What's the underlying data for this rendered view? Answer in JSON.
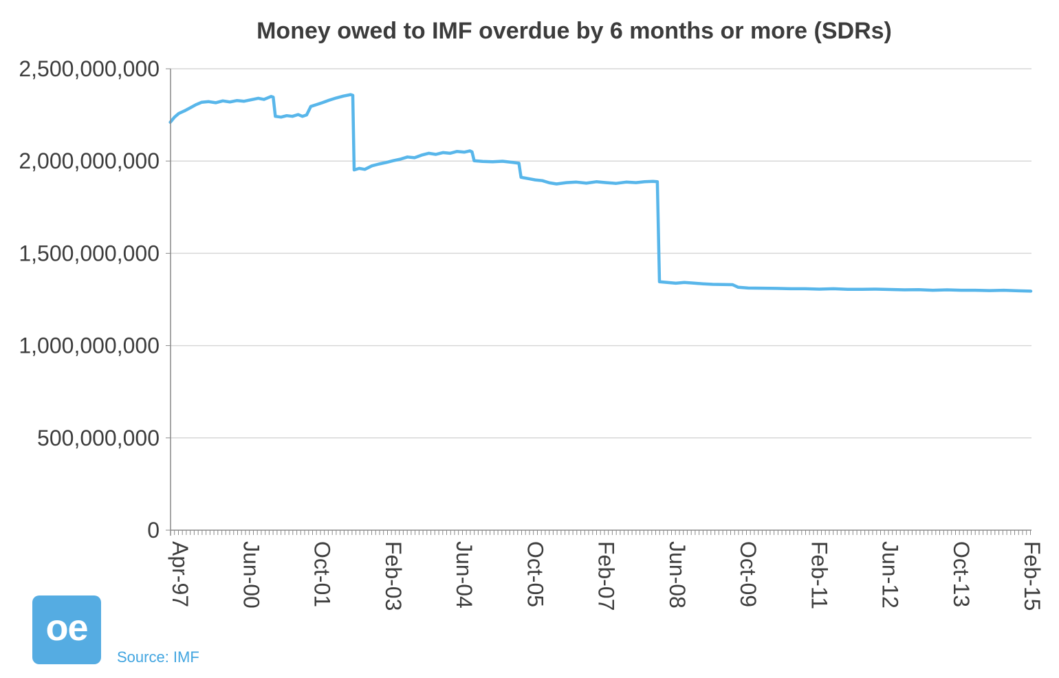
{
  "chart": {
    "title": "Money owed to IMF overdue by 6 months or more (SDRs)"
  },
  "footer": {
    "logo_text": "oe",
    "source": "Source: IMF"
  },
  "colors": {
    "line": "#58b6ea",
    "logo_bg": "#55ace2",
    "source_text": "#42a5e0",
    "gridline": "#d7d7d7",
    "axis": "#898989",
    "tick_text": "#3d3d3d"
  },
  "chart_data": {
    "type": "line",
    "title": "Money owed to IMF overdue by 6 months or more (SDRs)",
    "legend": "none",
    "grid": "horizontal",
    "x_note": "x values are axis positions where 0 = Apr-97 tick and 12 = Feb-15 tick; ticks are evenly spaced",
    "x_tick_labels": [
      "Apr-97",
      "Jun-00",
      "Oct-01",
      "Feb-03",
      "Jun-04",
      "Oct-05",
      "Feb-07",
      "Jun-08",
      "Oct-09",
      "Feb-11",
      "Jun-12",
      "Oct-13",
      "Feb-15"
    ],
    "y_axis": {
      "min": 0,
      "max": 2500000000,
      "tick_interval": 500000000,
      "tick_labels": [
        "0",
        "500,000,000",
        "1,000,000,000",
        "1,500,000,000",
        "2,000,000,000",
        "2,500,000,000"
      ]
    },
    "points": [
      [
        -0.12,
        2210000000
      ],
      [
        -0.06,
        2238000000
      ],
      [
        0.0,
        2258000000
      ],
      [
        0.08,
        2272000000
      ],
      [
        0.16,
        2288000000
      ],
      [
        0.24,
        2305000000
      ],
      [
        0.32,
        2318000000
      ],
      [
        0.42,
        2322000000
      ],
      [
        0.52,
        2316000000
      ],
      [
        0.62,
        2326000000
      ],
      [
        0.72,
        2320000000
      ],
      [
        0.82,
        2328000000
      ],
      [
        0.92,
        2324000000
      ],
      [
        1.02,
        2332000000
      ],
      [
        1.12,
        2340000000
      ],
      [
        1.2,
        2334000000
      ],
      [
        1.3,
        2350000000
      ],
      [
        1.33,
        2346000000
      ],
      [
        1.36,
        2242000000
      ],
      [
        1.44,
        2238000000
      ],
      [
        1.52,
        2246000000
      ],
      [
        1.6,
        2242000000
      ],
      [
        1.68,
        2252000000
      ],
      [
        1.74,
        2242000000
      ],
      [
        1.8,
        2250000000
      ],
      [
        1.86,
        2296000000
      ],
      [
        1.94,
        2306000000
      ],
      [
        2.02,
        2316000000
      ],
      [
        2.12,
        2330000000
      ],
      [
        2.22,
        2342000000
      ],
      [
        2.32,
        2352000000
      ],
      [
        2.42,
        2360000000
      ],
      [
        2.45,
        2356000000
      ],
      [
        2.47,
        1952000000
      ],
      [
        2.54,
        1960000000
      ],
      [
        2.62,
        1955000000
      ],
      [
        2.72,
        1974000000
      ],
      [
        2.82,
        1984000000
      ],
      [
        2.92,
        1992000000
      ],
      [
        3.02,
        2002000000
      ],
      [
        3.12,
        2010000000
      ],
      [
        3.22,
        2022000000
      ],
      [
        3.32,
        2018000000
      ],
      [
        3.42,
        2032000000
      ],
      [
        3.52,
        2042000000
      ],
      [
        3.62,
        2036000000
      ],
      [
        3.72,
        2046000000
      ],
      [
        3.82,
        2042000000
      ],
      [
        3.92,
        2052000000
      ],
      [
        4.02,
        2048000000
      ],
      [
        4.1,
        2055000000
      ],
      [
        4.13,
        2050000000
      ],
      [
        4.16,
        2002000000
      ],
      [
        4.28,
        1998000000
      ],
      [
        4.42,
        1996000000
      ],
      [
        4.56,
        1999000000
      ],
      [
        4.7,
        1993000000
      ],
      [
        4.79,
        1988000000
      ],
      [
        4.82,
        1912000000
      ],
      [
        4.92,
        1905000000
      ],
      [
        5.02,
        1898000000
      ],
      [
        5.12,
        1894000000
      ],
      [
        5.22,
        1882000000
      ],
      [
        5.32,
        1876000000
      ],
      [
        5.46,
        1883000000
      ],
      [
        5.6,
        1886000000
      ],
      [
        5.74,
        1880000000
      ],
      [
        5.88,
        1888000000
      ],
      [
        6.02,
        1883000000
      ],
      [
        6.16,
        1879000000
      ],
      [
        6.3,
        1886000000
      ],
      [
        6.44,
        1883000000
      ],
      [
        6.56,
        1888000000
      ],
      [
        6.68,
        1890000000
      ],
      [
        6.74,
        1888000000
      ],
      [
        6.77,
        1346000000
      ],
      [
        6.88,
        1342000000
      ],
      [
        7.0,
        1338000000
      ],
      [
        7.12,
        1342000000
      ],
      [
        7.24,
        1339000000
      ],
      [
        7.38,
        1335000000
      ],
      [
        7.52,
        1332000000
      ],
      [
        7.66,
        1331000000
      ],
      [
        7.8,
        1330000000
      ],
      [
        7.88,
        1316000000
      ],
      [
        8.02,
        1312000000
      ],
      [
        8.22,
        1311000000
      ],
      [
        8.42,
        1310000000
      ],
      [
        8.62,
        1308000000
      ],
      [
        8.82,
        1308000000
      ],
      [
        9.02,
        1306000000
      ],
      [
        9.22,
        1308000000
      ],
      [
        9.42,
        1305000000
      ],
      [
        9.62,
        1305000000
      ],
      [
        9.82,
        1306000000
      ],
      [
        10.02,
        1304000000
      ],
      [
        10.22,
        1302000000
      ],
      [
        10.42,
        1303000000
      ],
      [
        10.62,
        1300000000
      ],
      [
        10.82,
        1302000000
      ],
      [
        11.02,
        1300000000
      ],
      [
        11.22,
        1300000000
      ],
      [
        11.42,
        1298000000
      ],
      [
        11.62,
        1300000000
      ],
      [
        11.82,
        1297000000
      ],
      [
        12.0,
        1295000000
      ]
    ]
  }
}
